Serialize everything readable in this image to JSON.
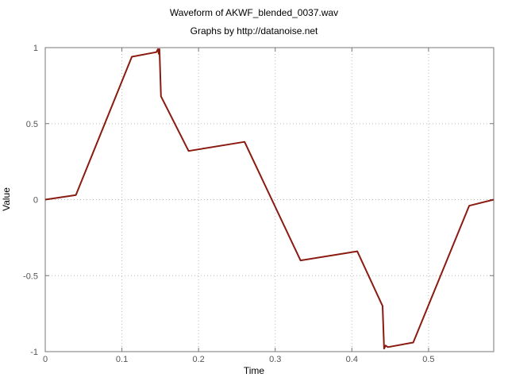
{
  "chart_data": {
    "type": "line",
    "title": "Waveform of AKWF_blended_0037.wav",
    "subtitle": "Graphs by http://datanoise.net",
    "xlabel": "Time",
    "ylabel": "Value",
    "xlim": [
      0,
      0.585
    ],
    "ylim": [
      -1,
      1
    ],
    "xticks": [
      0,
      0.1,
      0.2,
      0.3,
      0.4,
      0.5
    ],
    "xtick_labels": [
      "0",
      "0.1",
      "0.2",
      "0.3",
      "0.4",
      "0.5"
    ],
    "yticks": [
      1,
      0.5,
      0,
      -0.5,
      -1
    ],
    "ytick_labels": [
      "1",
      "0.5",
      "0",
      "-0.5",
      "-1"
    ],
    "grid": true,
    "line_color": "#8b1a10",
    "series": [
      {
        "x": [
          0,
          0.04,
          0.113,
          0.145,
          0.147,
          0.148,
          0.149,
          0.151,
          0.187,
          0.26,
          0.333,
          0.407,
          0.44,
          0.442,
          0.444,
          0.447,
          0.48,
          0.553,
          0.585
        ],
        "y": [
          0,
          0.03,
          0.94,
          0.97,
          0.99,
          0.96,
          0.99,
          0.68,
          0.32,
          0.38,
          -0.4,
          -0.34,
          -0.7,
          -0.98,
          -0.96,
          -0.97,
          -0.94,
          -0.04,
          0
        ]
      }
    ]
  }
}
